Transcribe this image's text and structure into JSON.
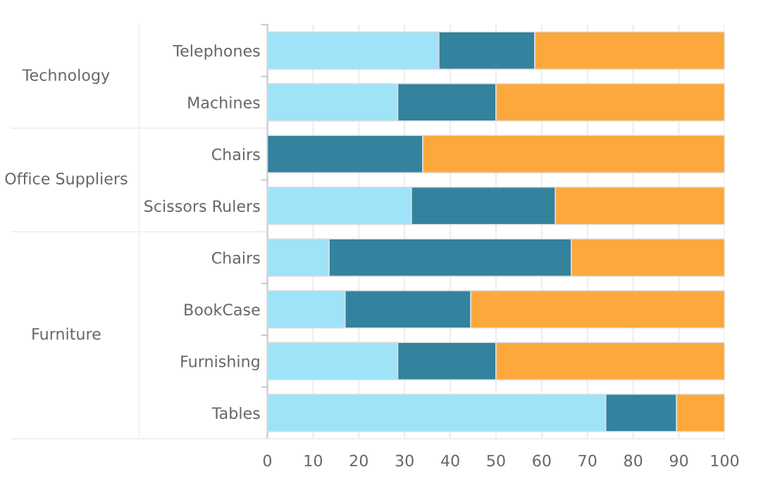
{
  "chart_data": {
    "type": "bar",
    "orientation": "horizontal",
    "stacked": true,
    "categories": [
      "Telephones",
      "Machines",
      "Chairs",
      "Scissors Rulers",
      "Chairs",
      "BookCase",
      "Furnishing",
      "Tables"
    ],
    "series": [
      {
        "color": "#9fe3f8",
        "values": [
          37.5,
          28.5,
          0,
          31.5,
          13.5,
          17,
          28.5,
          74
        ]
      },
      {
        "color": "#33829e",
        "values": [
          21,
          21.5,
          34,
          31.5,
          53,
          27.5,
          21.5,
          15.5
        ]
      },
      {
        "color": "#fda83c",
        "values": [
          41.5,
          50,
          66,
          37,
          33.5,
          55.5,
          50,
          10.5
        ]
      }
    ],
    "xlim": [
      0,
      100
    ],
    "xticks": [
      0,
      10,
      20,
      30,
      40,
      50,
      60,
      70,
      80,
      90,
      100
    ],
    "grid": "x",
    "legend": false,
    "annotations": [
      "Technology",
      "Office Suppliers",
      "Furniture"
    ]
  }
}
